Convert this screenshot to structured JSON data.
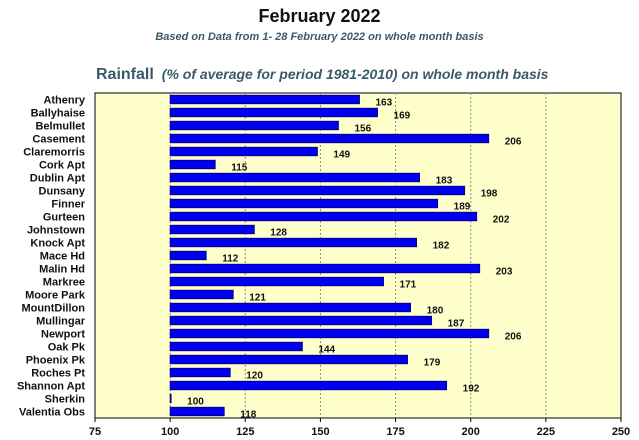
{
  "header": {
    "title": "February 2022",
    "subtitle": "Based on Data from 1- 28 February 2022 on whole month basis"
  },
  "chart_heading": {
    "main": "Rainfall",
    "note": "(% of average for period 1981-2010) on whole month basis"
  },
  "colors": {
    "plot_background": "#ffffcc",
    "bar_fill": "#0000ee",
    "bar_border": "#000080",
    "grid": "#888888"
  },
  "chart_data": {
    "type": "bar",
    "orientation": "horizontal",
    "title": "February 2022",
    "subtitle": "Based on Data from 1- 28 February 2022 on whole month basis",
    "ylabel": "",
    "xlabel": "",
    "xlim": [
      75,
      250
    ],
    "xticks": [
      75,
      100,
      125,
      150,
      175,
      200,
      225,
      250
    ],
    "bar_baseline": 100,
    "grid": true,
    "grid_axis": "x",
    "categories": [
      "Athenry",
      "Ballyhaise",
      "Belmullet",
      "Casement",
      "Claremorris",
      "Cork Apt",
      "Dublin Apt",
      "Dunsany",
      "Finner",
      "Gurteen",
      "Johnstown",
      "Knock Apt",
      "Mace Hd",
      "Malin Hd",
      "Markree",
      "Moore Park",
      "MountDillon",
      "Mullingar",
      "Newport",
      "Oak Pk",
      "Phoenix Pk",
      "Roches Pt",
      "Shannon Apt",
      "Sherkin",
      "Valentia Obs"
    ],
    "values": [
      163,
      169,
      156,
      206,
      149,
      115,
      183,
      198,
      189,
      202,
      128,
      182,
      112,
      203,
      171,
      121,
      180,
      187,
      206,
      144,
      179,
      120,
      192,
      100,
      118
    ]
  }
}
